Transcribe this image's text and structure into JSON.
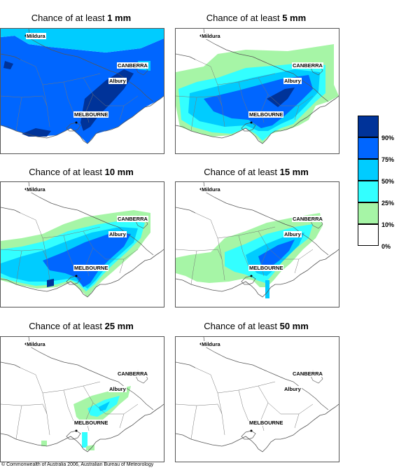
{
  "title_prefix": "Chance of at least",
  "copyright": "© Commonwealth of Australia 2006, Australian Bureau of Meteorology",
  "colors": {
    "lt10": "#ffffff",
    "p10": "#a6f5a6",
    "p25": "#33ffff",
    "p50": "#00ccff",
    "p75": "#0066ff",
    "p90": "#003399"
  },
  "legend": {
    "labels": [
      "90%",
      "75%",
      "50%",
      "25%",
      "10%",
      "0%"
    ],
    "colors_top_to_bottom": [
      "#003399",
      "#0066ff",
      "#00ccff",
      "#33ffff",
      "#a6f5a6",
      "#ffffff"
    ]
  },
  "places": {
    "mildura": "Mildura",
    "canberra": "CANBERRA",
    "albury": "Albury",
    "melbourne": "MELBOURNE"
  },
  "panels": [
    {
      "threshold": "1 mm",
      "level": 0
    },
    {
      "threshold": "5 mm",
      "level": 1
    },
    {
      "threshold": "10 mm",
      "level": 2
    },
    {
      "threshold": "15 mm",
      "level": 3
    },
    {
      "threshold": "25 mm",
      "level": 4
    },
    {
      "threshold": "50 mm",
      "level": 5
    }
  ]
}
